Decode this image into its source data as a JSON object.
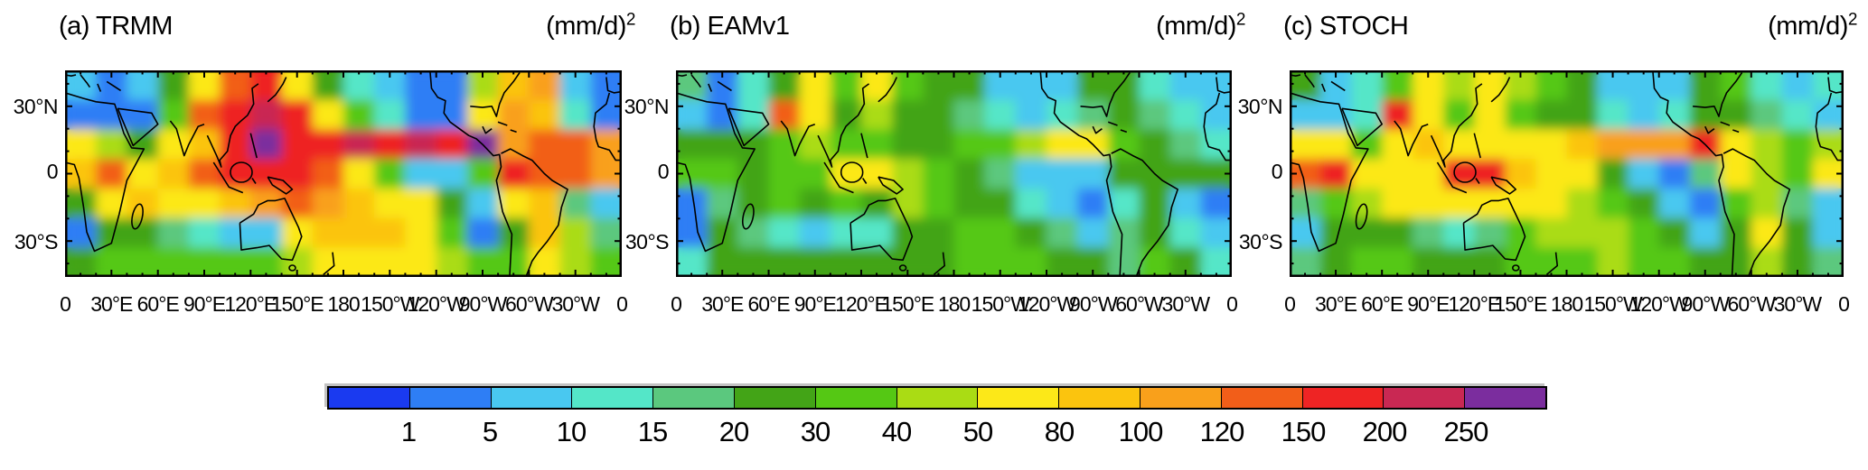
{
  "chart_data": {
    "type": "heatmap",
    "subtype": "global filled-contour maps of daily precipitation variance",
    "units": "(mm/d)^2",
    "lat_tick_labels": [
      "30°N",
      "0",
      "30°S"
    ],
    "lon_tick_labels": [
      "0",
      "30°E",
      "60°E",
      "90°E",
      "120°E",
      "150°E",
      "180",
      "150°W",
      "120°W",
      "90°W",
      "60°W",
      "30°W",
      "0"
    ],
    "grid_definition": {
      "lon_range_deg": [
        0,
        360
      ],
      "lat_range_deg": [
        -46,
        46
      ],
      "lon_step_deg": 20,
      "lat_row_centers_deg": [
        40,
        27,
        13,
        0,
        -13,
        -27,
        -40
      ]
    },
    "colorbar": {
      "boundary_labels": [
        "1",
        "5",
        "10",
        "15",
        "20",
        "30",
        "40",
        "50",
        "80",
        "100",
        "120",
        "150",
        "200",
        "250"
      ],
      "colors": [
        "#1a3af0",
        "#2e7ef5",
        "#49c8f0",
        "#54e6c8",
        "#5bc87e",
        "#43a417",
        "#55c814",
        "#aadc14",
        "#fce818",
        "#fbc40e",
        "#f9a01b",
        "#f25e19",
        "#ee2424",
        "#c92853",
        "#7b2d9e"
      ]
    },
    "panels": [
      {
        "label": "(a) TRMM",
        "units_base": "(mm/d)",
        "units_exp": "2",
        "grid_values": [
          [
            5,
            4,
            8,
            25,
            60,
            120,
            150,
            60,
            25,
            10,
            6,
            4,
            3,
            45,
            90,
            110,
            6,
            3
          ],
          [
            2,
            2,
            3,
            30,
            130,
            150,
            210,
            150,
            70,
            30,
            12,
            4,
            3,
            60,
            110,
            90,
            12,
            4
          ],
          [
            60,
            45,
            25,
            55,
            90,
            150,
            260,
            160,
            150,
            210,
            160,
            200,
            180,
            260,
            100,
            130,
            120,
            100
          ],
          [
            80,
            120,
            60,
            90,
            130,
            160,
            170,
            150,
            120,
            60,
            30,
            8,
            5,
            30,
            150,
            140,
            130,
            100
          ],
          [
            25,
            50,
            80,
            55,
            60,
            80,
            110,
            130,
            110,
            90,
            70,
            60,
            20,
            6,
            60,
            80,
            15,
            6
          ],
          [
            3,
            25,
            20,
            15,
            12,
            6,
            5,
            50,
            80,
            80,
            80,
            60,
            30,
            4,
            20,
            90,
            40,
            15
          ],
          [
            25,
            35,
            30,
            30,
            30,
            30,
            30,
            45,
            50,
            50,
            60,
            50,
            40,
            30,
            30,
            70,
            40,
            30
          ]
        ]
      },
      {
        "label": "(b) EAMv1",
        "units_base": "(mm/d)",
        "units_exp": "2",
        "grid_values": [
          [
            18,
            4,
            10,
            25,
            50,
            30,
            60,
            30,
            25,
            20,
            8,
            5,
            6,
            20,
            25,
            10,
            5,
            8
          ],
          [
            6,
            4,
            12,
            120,
            50,
            25,
            40,
            25,
            20,
            15,
            12,
            8,
            10,
            15,
            20,
            15,
            10,
            6
          ],
          [
            20,
            25,
            20,
            30,
            40,
            35,
            30,
            25,
            25,
            30,
            35,
            40,
            50,
            60,
            30,
            20,
            15,
            12
          ],
          [
            30,
            30,
            25,
            30,
            35,
            50,
            50,
            40,
            30,
            20,
            15,
            8,
            5,
            8,
            25,
            20,
            20,
            25
          ],
          [
            3,
            15,
            25,
            30,
            25,
            30,
            25,
            40,
            30,
            25,
            20,
            12,
            5,
            3,
            12,
            20,
            8,
            4
          ],
          [
            4,
            20,
            15,
            12,
            8,
            10,
            12,
            20,
            25,
            30,
            30,
            25,
            15,
            6,
            15,
            25,
            10,
            5
          ],
          [
            10,
            20,
            25,
            25,
            20,
            20,
            20,
            25,
            25,
            30,
            30,
            30,
            25,
            20,
            15,
            30,
            20,
            12
          ]
        ]
      },
      {
        "label": "(c) STOCH",
        "units_base": "(mm/d)",
        "units_exp": "2",
        "grid_values": [
          [
            20,
            5,
            10,
            30,
            60,
            40,
            60,
            40,
            30,
            25,
            8,
            5,
            8,
            25,
            30,
            12,
            5,
            10
          ],
          [
            8,
            5,
            12,
            150,
            70,
            35,
            50,
            30,
            25,
            20,
            12,
            8,
            10,
            20,
            25,
            18,
            10,
            8
          ],
          [
            60,
            50,
            30,
            50,
            80,
            60,
            60,
            60,
            70,
            90,
            100,
            100,
            110,
            180,
            60,
            40,
            30,
            40
          ],
          [
            130,
            150,
            60,
            70,
            70,
            160,
            170,
            90,
            70,
            50,
            25,
            8,
            4,
            15,
            60,
            40,
            30,
            60
          ],
          [
            15,
            30,
            40,
            55,
            55,
            55,
            60,
            70,
            55,
            40,
            30,
            20,
            6,
            4,
            30,
            40,
            15,
            5
          ],
          [
            5,
            25,
            25,
            20,
            15,
            12,
            15,
            30,
            40,
            45,
            45,
            35,
            20,
            6,
            20,
            50,
            20,
            6
          ],
          [
            15,
            25,
            30,
            30,
            25,
            20,
            20,
            30,
            30,
            35,
            40,
            35,
            30,
            25,
            20,
            40,
            25,
            15
          ]
        ]
      }
    ]
  }
}
